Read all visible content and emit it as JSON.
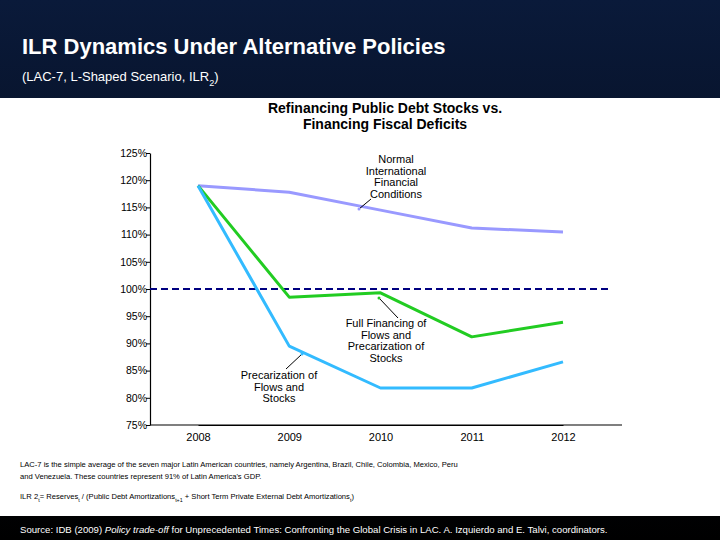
{
  "chart_data": {
    "type": "line",
    "title": "ILR Dynamics Under Alternative Policies",
    "subtitle": [
      {
        "text": "(LAC-7, L-Shaped Scenario, ILR"
      },
      {
        "text": "2",
        "sub": true
      },
      {
        "text": ")"
      }
    ],
    "plot_title": [
      "Refinancing Public Debt Stocks vs.",
      "Financing Fiscal Deficits"
    ],
    "categories": [
      "2008",
      "2009",
      "2010",
      "2011",
      "2012"
    ],
    "series": [
      {
        "color": "#9999ff",
        "line_style": "solid",
        "values": [
          119,
          117.8,
          114.5,
          111.2,
          110.5
        ]
      },
      {
        "color": "#22cc22",
        "line_style": "solid",
        "values": [
          119,
          98.5,
          99.3,
          91.2,
          93.9
        ]
      },
      {
        "color": "#33bbff",
        "line_style": "solid",
        "values": [
          119,
          89.5,
          81.8,
          81.8,
          86.6
        ]
      }
    ],
    "ylim": [
      75,
      125
    ],
    "yticks": [
      {
        "value": 75,
        "label": "75%"
      },
      {
        "value": 80,
        "label": "80%"
      },
      {
        "value": 85,
        "label": "85%"
      },
      {
        "value": 90,
        "label": "90%"
      },
      {
        "value": 95,
        "label": "95%"
      },
      {
        "value": 100,
        "label": "100%"
      },
      {
        "value": 105,
        "label": "105%"
      },
      {
        "value": 110,
        "label": "110%"
      },
      {
        "value": 115,
        "label": "115%"
      },
      {
        "value": 120,
        "label": "120%"
      },
      {
        "value": 125,
        "label": "125%"
      }
    ],
    "grid": false,
    "reference_lines": [
      {
        "value": 100,
        "line_style": "dashed",
        "color": "#000080"
      }
    ],
    "annotations": [
      {
        "lines": [
          "Normal",
          "International",
          "Financial",
          "Conditions"
        ],
        "series": 0
      },
      {
        "lines": [
          "Full Financing of",
          "Flows and",
          "Precarization of",
          "Stocks"
        ],
        "series": 1
      },
      {
        "lines": [
          "Precarization of",
          "Flows and",
          "Stocks"
        ],
        "series": 2
      }
    ],
    "notes": [
      "LAC-7 is the simple average of the seven major Latin American countries, namely Argentina, Brazil, Chile, Colombia, Mexico, Peru",
      "and Venezuela. These countries represent 91% of Latin America's GDP."
    ],
    "formula": [
      {
        "text": "ILR 2"
      },
      {
        "text": "t",
        "sub": true
      },
      {
        "text": "= Reserves"
      },
      {
        "text": "t",
        "sub": true
      },
      {
        "text": " / (Public Debt Amortizations"
      },
      {
        "text": "t+1",
        "sub": true
      },
      {
        "text": " + Short Term Private External Debt Amortizations"
      },
      {
        "text": "t",
        "sub": true
      },
      {
        "text": ")"
      }
    ],
    "source": [
      {
        "text": "Source: IDB (2009) "
      },
      {
        "text": "Policy trade-off",
        "italic": true
      },
      {
        "text": " for Unprecedented Times: Confronting the Global Crisis in LAC. A. Izquierdo and E. Talvi, coordinators."
      }
    ]
  }
}
